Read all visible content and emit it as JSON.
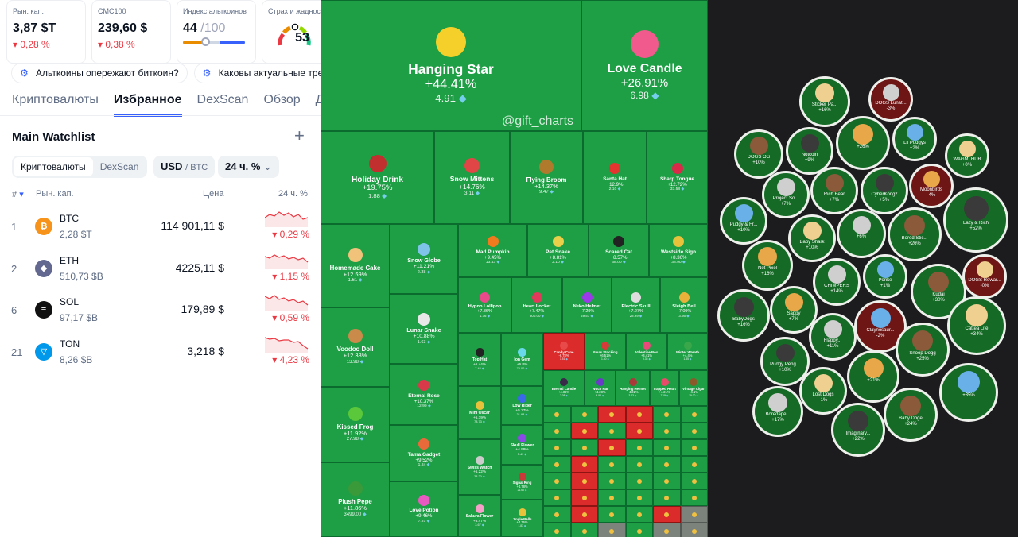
{
  "stats": [
    {
      "label": "Рын. кап.",
      "value": "3,87 $T",
      "change": "0,28 %"
    },
    {
      "label": "CMC100",
      "value": "239,60 $",
      "change": "0,38 %"
    },
    {
      "label": "Индекс альткоинов",
      "value": "44",
      "suffix": "/100",
      "level": 0.44
    },
    {
      "label": "Страх и жадность",
      "value": "53",
      "level": 0.53
    }
  ],
  "news": [
    "Альткоины опережают биткоин?",
    "Каковы актуальные тренды"
  ],
  "tabs": [
    "Криптовалюты",
    "Избранное",
    "DexScan",
    "Обзор",
    "Д"
  ],
  "watchlist": {
    "title": "Main Watchlist",
    "seg": [
      "Криптовалюты",
      "DexScan"
    ],
    "currency": "USD",
    "currency_alt": "/ BTC",
    "period": "24 ч. %"
  },
  "table": {
    "headers": {
      "rank": "#",
      "mcap": "Рын. кап.",
      "price": "Цена",
      "change": "24 ч. %"
    },
    "rows": [
      {
        "rank": "1",
        "symbol": "BTC",
        "mcap": "2,28 $T",
        "price": "114 901,11 $",
        "change": "0,29 %",
        "color": "#f7931a",
        "glyph": "₿"
      },
      {
        "rank": "2",
        "symbol": "ETH",
        "mcap": "510,73 $B",
        "price": "4225,11 $",
        "change": "1,15 %",
        "color": "#62688f",
        "glyph": "◆"
      },
      {
        "rank": "6",
        "symbol": "SOL",
        "mcap": "97,17 $B",
        "price": "179,89 $",
        "change": "0,59 %",
        "color": "#111111",
        "glyph": "≡"
      },
      {
        "rank": "21",
        "symbol": "TON",
        "mcap": "8,26 $B",
        "price": "3,218 $",
        "change": "4,23 %",
        "color": "#0098ea",
        "glyph": "▽"
      }
    ]
  },
  "heatmap": {
    "watermark": "@gift_charts",
    "tiles": [
      {
        "name": "Hanging Star",
        "pct": "+44.41%",
        "price": "4.91",
        "color": "#f5d02a"
      },
      {
        "name": "Love Candle",
        "pct": "+26.91%",
        "price": "6.98",
        "color": "#f05a8c"
      },
      {
        "name": "Holiday Drink",
        "pct": "+19.75%",
        "price": "1.88",
        "color": "#c22f2f"
      },
      {
        "name": "Snow Mittens",
        "pct": "+14.76%",
        "price": "3.11",
        "color": "#e04646"
      },
      {
        "name": "Flying Broom",
        "pct": "+14.37%",
        "price": "9.47",
        "color": "#b07a2c"
      },
      {
        "name": "Santa Hat",
        "pct": "+12.9%",
        "price": "2.10",
        "color": "#e3342f"
      },
      {
        "name": "Sharp Tongue",
        "pct": "+12.72%",
        "price": "33.58",
        "color": "#d92a4a"
      },
      {
        "name": "Homemade Cake",
        "pct": "+12.59%",
        "price": "1.61",
        "color": "#f0c27a"
      },
      {
        "name": "Snow Globe",
        "pct": "+11.21%",
        "price": "2.38",
        "color": "#7fc4e8"
      },
      {
        "name": "Mad Pumpkin",
        "pct": "+9.45%",
        "price": "13.43",
        "color": "#f07a1e"
      },
      {
        "name": "Pet Snake",
        "pct": "+8.81%",
        "price": "2.10",
        "color": "#e8d04a"
      },
      {
        "name": "Scared Cat",
        "pct": "+8.57%",
        "price": "38.00",
        "color": "#222222"
      },
      {
        "name": "Westside Sign",
        "pct": "+8.36%",
        "price": "38.90",
        "color": "#e8c23a"
      },
      {
        "name": "Lunar Snake",
        "pct": "+10.88%",
        "price": "1.63",
        "color": "#e8e8e8"
      },
      {
        "name": "Hypno Lollipop",
        "pct": "+7.86%",
        "price": "1.76",
        "color": "#e84a8a"
      },
      {
        "name": "Heart Locket",
        "pct": "+7.47%",
        "price": "300.00",
        "color": "#e23a5a"
      },
      {
        "name": "Neko Helmet",
        "pct": "+7.29%",
        "price": "29.57",
        "color": "#9a3ae8"
      },
      {
        "name": "Electric Skull",
        "pct": "+7.27%",
        "price": "28.99",
        "color": "#dddddd"
      },
      {
        "name": "Sleigh Bell",
        "pct": "+7.09%",
        "price": "3.66",
        "color": "#e8b23a"
      },
      {
        "name": "Voodoo Doll",
        "pct": "+12.38%",
        "price": "13.98",
        "color": "#c98a4a"
      },
      {
        "name": "Eternal Rose",
        "pct": "+10.37%",
        "price": "12.99",
        "color": "#d83a4a"
      },
      {
        "name": "Kissed Frog",
        "pct": "+11.92%",
        "price": "27.98",
        "color": "#5ac83a"
      },
      {
        "name": "Tama Gadget",
        "pct": "+9.52%",
        "price": "1.84",
        "color": "#e86a3a"
      },
      {
        "name": "Plush Pepe",
        "pct": "+11.86%",
        "price": "3499.00",
        "color": "#3a9a3a"
      },
      {
        "name": "Love Potion",
        "pct": "+9.46%",
        "price": "7.87",
        "color": "#e85ac0"
      },
      {
        "name": "Top Hat",
        "pct": "+6.44%",
        "price": "7.44",
        "color": "#222222"
      },
      {
        "name": "Ion Gem",
        "pct": "+6.8%",
        "price": "75.00",
        "color": "#6ad8e8"
      },
      {
        "name": "Mini Oscar",
        "pct": "+6.39%",
        "price": "78.73",
        "color": "#e8c23a"
      },
      {
        "name": "Low Rider",
        "pct": "+5.27%",
        "price": "31.98",
        "color": "#3a6ae8"
      },
      {
        "name": "Swiss Watch",
        "pct": "+6.22%",
        "price": "28.20",
        "color": "#cccccc"
      },
      {
        "name": "Skull Flower",
        "pct": "+4.99%",
        "price": "5.49",
        "color": "#8a4ae8"
      },
      {
        "name": "Signal Ring",
        "pct": "+4.78%",
        "price": "21.65",
        "color": "#c83a3a"
      },
      {
        "name": "Sakura Flower",
        "pct": "+5.47%",
        "price": "3.67",
        "color": "#f4a0c8"
      },
      {
        "name": "Jingle Bells",
        "pct": "+4.76%",
        "price": "1.83",
        "color": "#e8c23a"
      },
      {
        "name": "Candy Cane",
        "pct": "-6.78%",
        "price": "1.51",
        "color": "#e84a4a"
      },
      {
        "name": "Xmas Stocking",
        "pct": "+6.51%",
        "price": "1.40",
        "color": "#d83a3a"
      },
      {
        "name": "Valentine Box",
        "pct": "+4.41%",
        "price": "9.35",
        "color": "#e84a7a"
      },
      {
        "name": "Winter Wreath",
        "pct": "+4.4%",
        "price": "1.85",
        "color": "#3aa84a"
      },
      {
        "name": "Eternal Candle",
        "pct": "+4.36%",
        "price": "2.08",
        "color": "#3a2a4a"
      },
      {
        "name": "Witch Hat",
        "pct": "+4.28%",
        "price": "4.98",
        "color": "#6a3ac8"
      },
      {
        "name": "Hanging Helmet",
        "pct": "+4.22%",
        "price": "3.23",
        "color": "#a83a3a"
      },
      {
        "name": "Trapped Heart",
        "pct": "+4.21%",
        "price": "7.19",
        "color": "#e84a6a"
      },
      {
        "name": "Vintage Cigar",
        "pct": "+4.1%",
        "price": "19.00",
        "color": "#8a5a2a"
      }
    ]
  },
  "bubbles": [
    {
      "name": "Sticker Pa...",
      "pct": "+16%"
    },
    {
      "name": "DOGS Lunat...",
      "pct": "-3%"
    },
    {
      "name": "DOGS OG",
      "pct": "+10%"
    },
    {
      "name": "Notcoin",
      "pct": "+9%"
    },
    {
      "name": "",
      "pct": "+26%"
    },
    {
      "name": "Lil Pudgys",
      "pct": "+2%"
    },
    {
      "name": "WAGMI HUB",
      "pct": "+0%"
    },
    {
      "name": "Project So...",
      "pct": "+7%"
    },
    {
      "name": "Rich Bear",
      "pct": "+7%"
    },
    {
      "name": "CyberKongz",
      "pct": "+5%"
    },
    {
      "name": "Moonbirds",
      "pct": "-4%"
    },
    {
      "name": "Pudgy & Fr...",
      "pct": "+10%"
    },
    {
      "name": "Baby Shark",
      "pct": "+10%"
    },
    {
      "name": "",
      "pct": "+6%"
    },
    {
      "name": "Bored Stic...",
      "pct": "+26%"
    },
    {
      "name": "Lazy & Rich",
      "pct": "+52%"
    },
    {
      "name": "Not Pixel",
      "pct": "+16%"
    },
    {
      "name": "Ponke",
      "pct": "+1%"
    },
    {
      "name": "DOGS Rewar...",
      "pct": "-0%"
    },
    {
      "name": "CHIMPERS",
      "pct": "+14%"
    },
    {
      "name": "Kudai",
      "pct": "+30%"
    },
    {
      "name": "BabyDogs",
      "pct": "+16%"
    },
    {
      "name": "Sappy",
      "pct": "+7%"
    },
    {
      "name": "Claynosaur...",
      "pct": "-2%"
    },
    {
      "name": "Cattea Life",
      "pct": "+34%"
    },
    {
      "name": "Flappy...",
      "pct": "+11%"
    },
    {
      "name": "Snoop Dogg",
      "pct": "+25%"
    },
    {
      "name": "Pudgy Peng...",
      "pct": "+10%"
    },
    {
      "name": "",
      "pct": "+21%"
    },
    {
      "name": "",
      "pct": "+35%"
    },
    {
      "name": "Lost Dogs",
      "pct": "-1%"
    },
    {
      "name": "Boredape...",
      "pct": "+17%"
    },
    {
      "name": "Baby Doge",
      "pct": "+24%"
    },
    {
      "name": "Imaginary...",
      "pct": "+22%"
    }
  ]
}
